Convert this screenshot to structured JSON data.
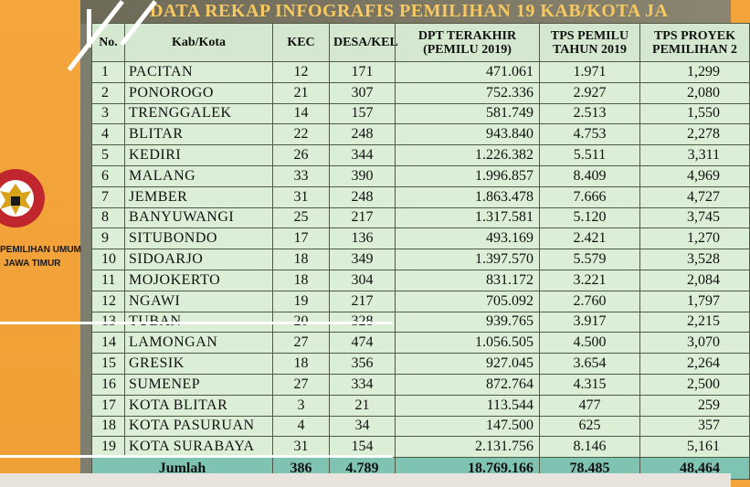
{
  "title": "DATA REKAP INFOGRAFIS PEMILIHAN 19 KAB/KOTA JA",
  "organization": {
    "line1": "PEMILIHAN UMUM",
    "line2": "JAWA TIMUR"
  },
  "table": {
    "headers": {
      "no": "No.",
      "kab_kota": "Kab/Kota",
      "kec": "KEC",
      "desa_kel": "DESA/KEL",
      "dpt_line1": "DPT TERAKHIR",
      "dpt_line2": "(PEMILU 2019)",
      "tps_pemilu_line1": "TPS PEMILU",
      "tps_pemilu_line2": "TAHUN 2019",
      "tps_proyeksi_line1": "TPS PROYEK",
      "tps_proyeksi_line2": "PEMILIHAN 2"
    },
    "rows": [
      {
        "no": "1",
        "kab": "PACITAN",
        "kec": "12",
        "desa": "171",
        "dpt": "471.061",
        "tps2019": "1.971",
        "tps_proy": "1,299"
      },
      {
        "no": "2",
        "kab": "PONOROGO",
        "kec": "21",
        "desa": "307",
        "dpt": "752.336",
        "tps2019": "2.927",
        "tps_proy": "2,080"
      },
      {
        "no": "3",
        "kab": "TRENGGALEK",
        "kec": "14",
        "desa": "157",
        "dpt": "581.749",
        "tps2019": "2.513",
        "tps_proy": "1,550"
      },
      {
        "no": "4",
        "kab": "BLITAR",
        "kec": "22",
        "desa": "248",
        "dpt": "943.840",
        "tps2019": "4.753",
        "tps_proy": "2,278"
      },
      {
        "no": "5",
        "kab": "KEDIRI",
        "kec": "26",
        "desa": "344",
        "dpt": "1.226.382",
        "tps2019": "5.511",
        "tps_proy": "3,311"
      },
      {
        "no": "6",
        "kab": "MALANG",
        "kec": "33",
        "desa": "390",
        "dpt": "1.996.857",
        "tps2019": "8.409",
        "tps_proy": "4,969"
      },
      {
        "no": "7",
        "kab": "JEMBER",
        "kec": "31",
        "desa": "248",
        "dpt": "1.863.478",
        "tps2019": "7.666",
        "tps_proy": "4,727"
      },
      {
        "no": "8",
        "kab": "BANYUWANGI",
        "kec": "25",
        "desa": "217",
        "dpt": "1.317.581",
        "tps2019": "5.120",
        "tps_proy": "3,745"
      },
      {
        "no": "9",
        "kab": "SITUBONDO",
        "kec": "17",
        "desa": "136",
        "dpt": "493.169",
        "tps2019": "2.421",
        "tps_proy": "1,270"
      },
      {
        "no": "10",
        "kab": "SIDOARJO",
        "kec": "18",
        "desa": "349",
        "dpt": "1.397.570",
        "tps2019": "5.579",
        "tps_proy": "3,528"
      },
      {
        "no": "11",
        "kab": "MOJOKERTO",
        "kec": "18",
        "desa": "304",
        "dpt": "831.172",
        "tps2019": "3.221",
        "tps_proy": "2,084"
      },
      {
        "no": "12",
        "kab": "NGAWI",
        "kec": "19",
        "desa": "217",
        "dpt": "705.092",
        "tps2019": "2.760",
        "tps_proy": "1,797"
      },
      {
        "no": "13",
        "kab": "TUBAN",
        "kec": "20",
        "desa": "328",
        "dpt": "939.765",
        "tps2019": "3.917",
        "tps_proy": "2,215"
      },
      {
        "no": "14",
        "kab": "LAMONGAN",
        "kec": "27",
        "desa": "474",
        "dpt": "1.056.505",
        "tps2019": "4.500",
        "tps_proy": "3,070"
      },
      {
        "no": "15",
        "kab": "GRESIK",
        "kec": "18",
        "desa": "356",
        "dpt": "927.045",
        "tps2019": "3.654",
        "tps_proy": "2,264"
      },
      {
        "no": "16",
        "kab": "SUMENEP",
        "kec": "27",
        "desa": "334",
        "dpt": "872.764",
        "tps2019": "4.315",
        "tps_proy": "2,500"
      },
      {
        "no": "17",
        "kab": "KOTA BLITAR",
        "kec": "3",
        "desa": "21",
        "dpt": "113.544",
        "tps2019": "477",
        "tps_proy": "259"
      },
      {
        "no": "18",
        "kab": "KOTA PASURUAN",
        "kec": "4",
        "desa": "34",
        "dpt": "147.500",
        "tps2019": "625",
        "tps_proy": "357"
      },
      {
        "no": "19",
        "kab": "KOTA SURABAYA",
        "kec": "31",
        "desa": "154",
        "dpt": "2.131.756",
        "tps2019": "8.146",
        "tps_proy": "5,161"
      }
    ],
    "total": {
      "label": "Jumlah",
      "kec": "386",
      "desa": "4.789",
      "dpt": "18.769.166",
      "tps2019": "78.485",
      "tps_proy": "48,464"
    }
  },
  "colors": {
    "accent_orange": "#f2a33a",
    "table_bg": "#dbefd6",
    "total_bg": "#7fc4b3",
    "title_text": "#f7c960"
  }
}
